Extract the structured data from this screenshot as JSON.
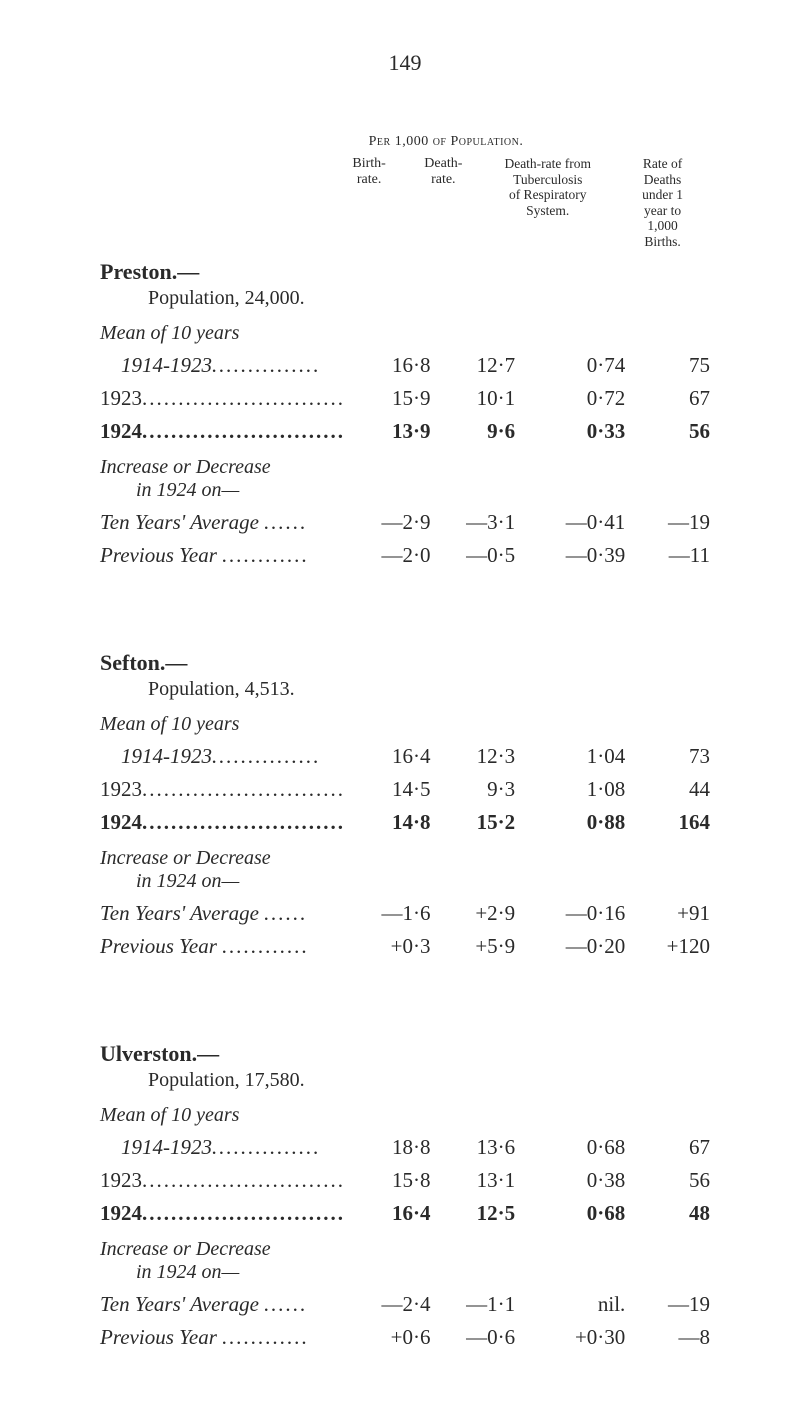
{
  "page_number": "149",
  "headers": {
    "per": "Per 1,000 of Population.",
    "rate": "Rate of\nDeaths",
    "birth": "Birth-\nrate.",
    "death": "Death-\nrate.",
    "tub": "Death-rate from\nTuberculosis\nof Respiratory\nSystem.",
    "under": "under 1\nyear to\n1,000\nBirths."
  },
  "cities": [
    {
      "name": "Preston.—",
      "population": "Population, 24,000.",
      "mean_label": "Mean of 10 years",
      "rows": [
        {
          "label": "1914-1923",
          "italic": true,
          "dots": "...............",
          "c1": "16·8",
          "c2": "12·7",
          "c3": "0·74",
          "c4": "75"
        },
        {
          "label": "1923",
          "dots": "............................",
          "c1": "15·9",
          "c2": "10·1",
          "c3": "0·72",
          "c4": "67"
        },
        {
          "label": "1924",
          "dots": "............................",
          "bold": true,
          "c1": "13·9",
          "c2": "9·6",
          "c3": "0·33",
          "c4": "56"
        }
      ],
      "incdec": "Increase or Decrease",
      "incdec_sub": "in 1924 on—",
      "delta": [
        {
          "label": "Ten Years' Average",
          "dots": "......",
          "c1": "—2·9",
          "c2": "—3·1",
          "c3": "—0·41",
          "c4": "—19"
        },
        {
          "label": "Previous Year",
          "dots": "............",
          "c1": "—2·0",
          "c2": "—0·5",
          "c3": "—0·39",
          "c4": "—11"
        }
      ]
    },
    {
      "name": "Sefton.—",
      "population": "Population, 4,513.",
      "mean_label": "Mean of 10 years",
      "rows": [
        {
          "label": "1914-1923",
          "italic": true,
          "dots": "...............",
          "c1": "16·4",
          "c2": "12·3",
          "c3": "1·04",
          "c4": "73"
        },
        {
          "label": "1923",
          "dots": "............................",
          "c1": "14·5",
          "c2": "9·3",
          "c3": "1·08",
          "c4": "44"
        },
        {
          "label": "1924",
          "dots": "............................",
          "bold": true,
          "c1": "14·8",
          "c2": "15·2",
          "c3": "0·88",
          "c4": "164"
        }
      ],
      "incdec": "Increase or Decrease",
      "incdec_sub": "in 1924 on—",
      "delta": [
        {
          "label": "Ten Years' Average",
          "dots": "......",
          "c1": "—1·6",
          "c2": "+2·9",
          "c3": "—0·16",
          "c4": "+91"
        },
        {
          "label": "Previous Year",
          "dots": "............",
          "c1": "+0·3",
          "c2": "+5·9",
          "c3": "—0·20",
          "c4": "+120"
        }
      ]
    },
    {
      "name": "Ulverston.—",
      "population": "Population, 17,580.",
      "mean_label": "Mean of 10 years",
      "rows": [
        {
          "label": "1914-1923",
          "italic": true,
          "dots": "...............",
          "c1": "18·8",
          "c2": "13·6",
          "c3": "0·68",
          "c4": "67"
        },
        {
          "label": "1923",
          "dots": "............................",
          "c1": "15·8",
          "c2": "13·1",
          "c3": "0·38",
          "c4": "56"
        },
        {
          "label": "1924",
          "dots": "............................",
          "bold": true,
          "c1": "16·4",
          "c2": "12·5",
          "c3": "0·68",
          "c4": "48"
        }
      ],
      "incdec": "Increase or Decrease",
      "incdec_sub": "in 1924 on—",
      "delta": [
        {
          "label": "Ten Years' Average",
          "dots": "......",
          "c1": "—2·4",
          "c2": "—1·1",
          "c3": "nil.",
          "c4": "—19"
        },
        {
          "label": "Previous Year",
          "dots": "............",
          "c1": "+0·6",
          "c2": "—0·6",
          "c3": "+0·30",
          "c4": "—8"
        }
      ]
    }
  ]
}
